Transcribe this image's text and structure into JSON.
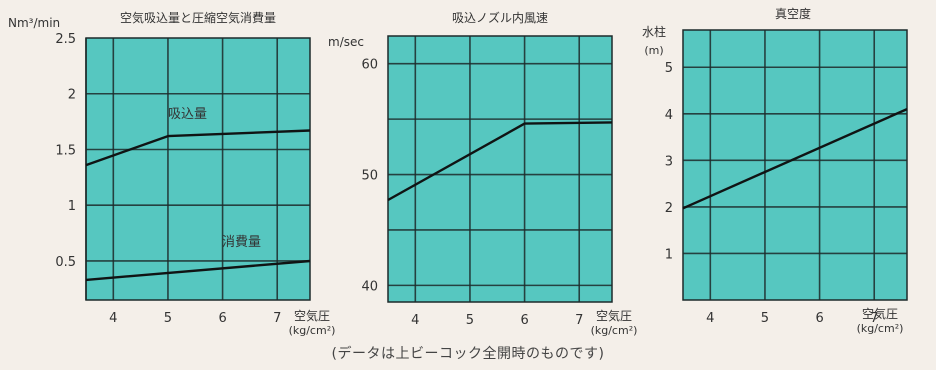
{
  "colors": {
    "plot_bg": "#56c7c0",
    "grid": "#1d2a2a",
    "line": "#101414",
    "page_bg": "#f4efe9"
  },
  "footnote": "(データは上ビーコック全開時のものです)",
  "chart_data": [
    {
      "type": "line",
      "title": "空気吸込量と圧縮空気消費量",
      "ylabel": "Nm³/min",
      "xlabel": "空気圧 (kg/cm²)",
      "x_ticks": [
        "4",
        "5",
        "6",
        "7"
      ],
      "y_ticks": [
        "0.5",
        "1",
        "1.5",
        "2",
        "2.5"
      ],
      "xlim": [
        3.5,
        7.6
      ],
      "ylim": [
        0.15,
        2.5
      ],
      "grid": true,
      "series": [
        {
          "name": "吸込量",
          "x": [
            3.5,
            5.0,
            7.6
          ],
          "y": [
            1.36,
            1.62,
            1.67
          ]
        },
        {
          "name": "消費量",
          "x": [
            3.5,
            7.6
          ],
          "y": [
            0.33,
            0.5
          ]
        }
      ]
    },
    {
      "type": "line",
      "title": "吸込ノズル内風速",
      "ylabel": "m/sec",
      "xlabel": "空気圧 (kg/cm²)",
      "x_ticks": [
        "4",
        "5",
        "6",
        "7"
      ],
      "y_ticks": [
        "40",
        "50",
        "60"
      ],
      "xlim": [
        3.5,
        7.6
      ],
      "ylim": [
        38.5,
        62.5
      ],
      "grid": true,
      "series": [
        {
          "name": "",
          "x": [
            3.5,
            6.0,
            7.6
          ],
          "y": [
            47.7,
            54.6,
            54.7
          ]
        }
      ]
    },
    {
      "type": "line",
      "title": "真空度",
      "ylabel": "水柱 (m)",
      "xlabel": "空気圧 (kg/cm²)",
      "x_ticks": [
        "4",
        "5",
        "6",
        "7"
      ],
      "y_ticks": [
        "1",
        "2",
        "3",
        "4",
        "5"
      ],
      "xlim": [
        3.5,
        7.6
      ],
      "ylim": [
        0,
        5.8
      ],
      "grid": true,
      "series": [
        {
          "name": "",
          "x": [
            3.5,
            7.6
          ],
          "y": [
            1.97,
            4.1
          ]
        }
      ]
    }
  ]
}
